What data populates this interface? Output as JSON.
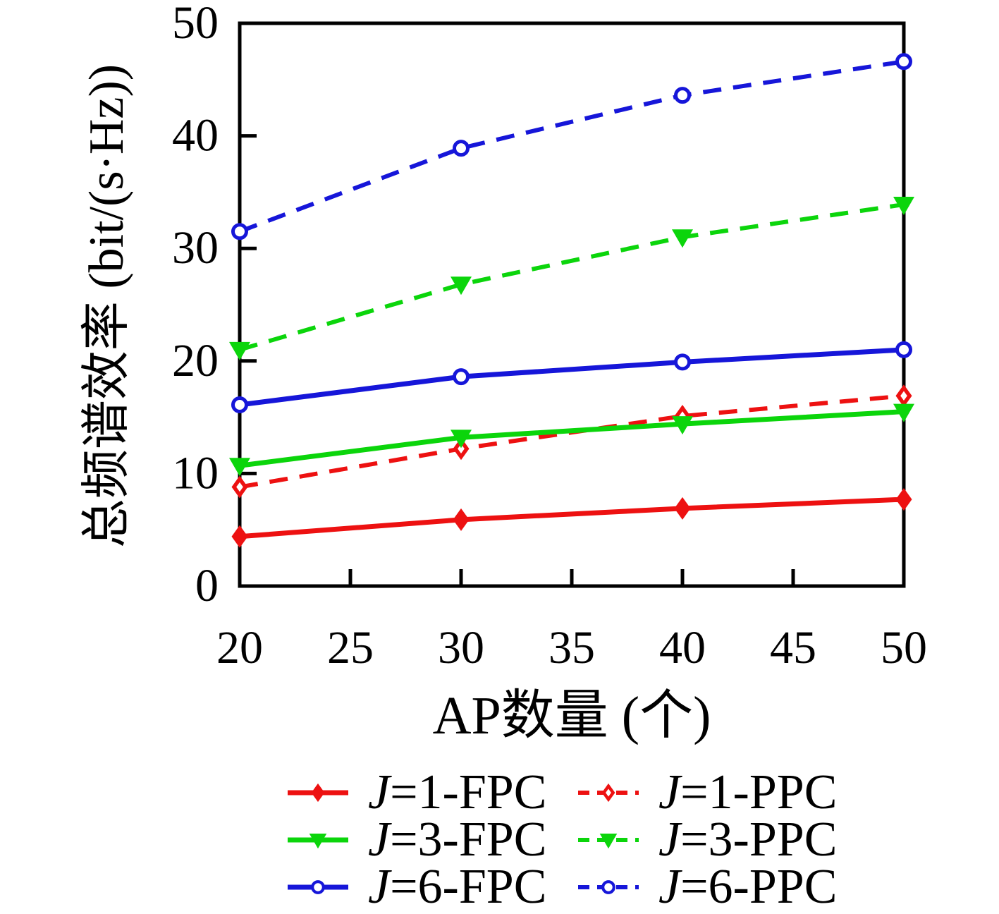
{
  "figure": {
    "background": "#ffffff",
    "axis_color": "#000000"
  },
  "chart_data": {
    "type": "line",
    "title": "",
    "xlabel": "AP数量 (个)",
    "ylabel": "总频谱效率 (bit/(s·Hz))",
    "xlim": [
      20,
      50
    ],
    "ylim": [
      0,
      50
    ],
    "xticks": [
      20,
      25,
      30,
      35,
      40,
      45,
      50
    ],
    "yticks": [
      0,
      10,
      20,
      30,
      40,
      50
    ],
    "grid": false,
    "legend_position": "below-two-columns",
    "x": [
      20,
      30,
      40,
      50
    ],
    "series": [
      {
        "name": "J=1-FPC",
        "color": "#ed1111",
        "line": "solid",
        "marker": "diamond",
        "marker_fill": "solid",
        "values": [
          4.4,
          5.9,
          6.9,
          7.7
        ]
      },
      {
        "name": "J=1-PPC",
        "color": "#ed1111",
        "line": "dashed",
        "marker": "diamond",
        "marker_fill": "open",
        "values": [
          8.8,
          12.2,
          15.1,
          16.9
        ]
      },
      {
        "name": "J=3-FPC",
        "color": "#0bd50b",
        "line": "solid",
        "marker": "triangle-down",
        "marker_fill": "solid",
        "values": [
          10.7,
          13.2,
          14.4,
          15.5
        ]
      },
      {
        "name": "J=3-PPC",
        "color": "#0bd50b",
        "line": "dashed",
        "marker": "triangle-down",
        "marker_fill": "solid",
        "values": [
          21.0,
          26.8,
          31.0,
          33.9
        ]
      },
      {
        "name": "J=6-FPC",
        "color": "#1616d9",
        "line": "solid",
        "marker": "circle",
        "marker_fill": "open",
        "values": [
          16.1,
          18.6,
          19.9,
          21.0
        ]
      },
      {
        "name": "J=6-PPC",
        "color": "#1616d9",
        "line": "dashed",
        "marker": "circle",
        "marker_fill": "open",
        "values": [
          31.5,
          38.9,
          43.6,
          46.6
        ]
      }
    ],
    "legend_rows": [
      [
        "J=1-FPC",
        "J=1-PPC"
      ],
      [
        "J=3-FPC",
        "J=3-PPC"
      ],
      [
        "J=6-FPC",
        "J=6-PPC"
      ]
    ]
  }
}
